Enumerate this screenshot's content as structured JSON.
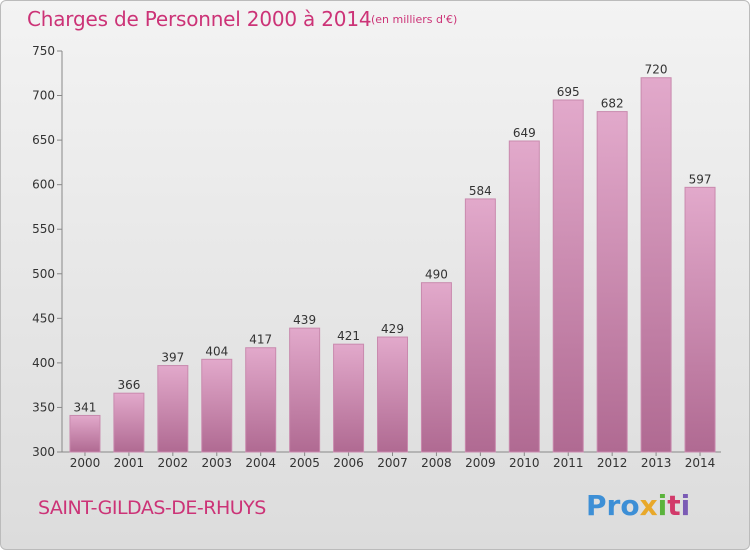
{
  "title": "Charges de Personnel 2000 à 2014",
  "unit_note": "(en milliers d'€)",
  "commune": "SAINT-GILDAS-DE-RHUYS",
  "logo": {
    "parts": [
      "Pro",
      "x",
      "i",
      "t",
      "i"
    ],
    "text": "Proxiti"
  },
  "colors": {
    "title": "#cc3377",
    "bar_light": "#e2a9cb",
    "bar_dark": "#b06a92",
    "bar_stroke": "#c98aae"
  },
  "chart_data": {
    "type": "bar",
    "categories": [
      "2000",
      "2001",
      "2002",
      "2003",
      "2004",
      "2005",
      "2006",
      "2007",
      "2008",
      "2009",
      "2010",
      "2011",
      "2012",
      "2013",
      "2014"
    ],
    "values": [
      341,
      366,
      397,
      404,
      417,
      439,
      421,
      429,
      490,
      584,
      649,
      695,
      682,
      720,
      597
    ],
    "ylim": [
      300,
      750
    ],
    "yticks": [
      300,
      350,
      400,
      450,
      500,
      550,
      600,
      650,
      700,
      750
    ],
    "grid": false,
    "data_labels": true
  }
}
